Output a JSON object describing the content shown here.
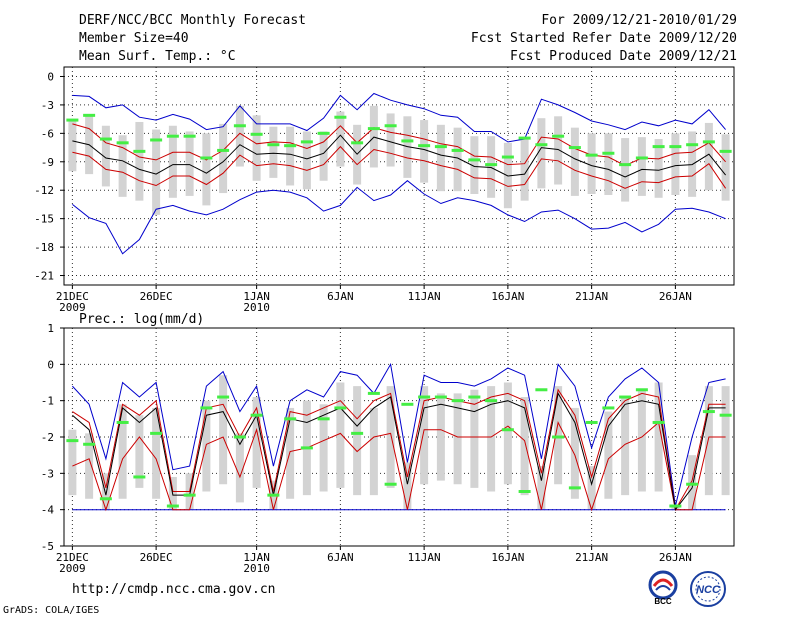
{
  "header": {
    "title": "DERF/NCC/BCC Monthly Forecast",
    "member_size": "Member Size=40",
    "variable": "Mean Surf. Temp.: °C",
    "period": "For 2009/12/21-2010/01/29",
    "started": "Fcst Started Refer Date 2009/12/20",
    "produced": "Fcst Produced Date 2009/12/21"
  },
  "footer": {
    "url": "http://cmdp.ncc.cma.gov.cn",
    "grads": "GrADS: COLA/IGES",
    "logo_bcc": "BCC",
    "logo_ncc": "NCC"
  },
  "colors": {
    "box": "#d3d3d3",
    "mean": "#000000",
    "upper": "#0000cc",
    "lower": "#cc0000",
    "obs": "#44ee44"
  },
  "chart_data": [
    {
      "type": "box-line",
      "title": "Mean Surf. Temp.: °C",
      "ylim": [
        -22,
        1
      ],
      "yticks": [
        0,
        -3,
        -6,
        -9,
        -12,
        -15,
        -18,
        -21
      ],
      "xlim": [
        0.5,
        40.5
      ],
      "xticks": [
        {
          "day": 1,
          "label": "21DEC",
          "sub": "2009"
        },
        {
          "day": 6,
          "label": "26DEC",
          "sub": ""
        },
        {
          "day": 12,
          "label": "1JAN",
          "sub": "2010"
        },
        {
          "day": 17,
          "label": "6JAN",
          "sub": ""
        },
        {
          "day": 22,
          "label": "11JAN",
          "sub": ""
        },
        {
          "day": 27,
          "label": "16JAN",
          "sub": ""
        },
        {
          "day": 32,
          "label": "21JAN",
          "sub": ""
        },
        {
          "day": 37,
          "label": "26JAN",
          "sub": ""
        }
      ],
      "upper": [
        -2.0,
        -2.1,
        -3.3,
        -3.0,
        -4.3,
        -4.6,
        -4.0,
        -4.5,
        -5.6,
        -5.3,
        -3.1,
        -5.0,
        -5.0,
        -5.0,
        -5.7,
        -4.4,
        -2.0,
        -3.5,
        -1.8,
        -2.5,
        -3.0,
        -3.4,
        -4.1,
        -4.3,
        -5.8,
        -5.8,
        -6.9,
        -6.6,
        -2.4,
        -3.0,
        -3.8,
        -4.7,
        -5.1,
        -5.6,
        -4.8,
        -5.2,
        -4.6,
        -5.0,
        -3.5,
        -5.6
      ],
      "mean": [
        -6.8,
        -7.2,
        -8.6,
        -8.9,
        -9.8,
        -10.3,
        -9.3,
        -9.3,
        -10.2,
        -9.0,
        -7.2,
        -8.2,
        -8.1,
        -8.2,
        -8.7,
        -8.1,
        -6.2,
        -8.2,
        -6.4,
        -6.9,
        -7.4,
        -7.7,
        -8.3,
        -8.6,
        -9.5,
        -9.6,
        -10.5,
        -10.3,
        -7.5,
        -7.7,
        -8.7,
        -9.4,
        -9.8,
        -10.6,
        -9.8,
        -9.9,
        -9.4,
        -9.3,
        -8.2,
        -10.4
      ],
      "upper_mean": [
        -5.0,
        -5.5,
        -7.0,
        -7.5,
        -8.5,
        -8.8,
        -8.0,
        -8.0,
        -8.8,
        -7.8,
        -6.0,
        -7.1,
        -6.9,
        -7.0,
        -7.6,
        -6.9,
        -5.2,
        -7.0,
        -5.4,
        -5.9,
        -6.2,
        -6.6,
        -7.1,
        -7.4,
        -8.4,
        -8.5,
        -9.3,
        -9.2,
        -6.4,
        -6.6,
        -7.6,
        -8.3,
        -8.5,
        -9.4,
        -8.6,
        -8.7,
        -8.1,
        -8.0,
        -7.0,
        -9.0
      ],
      "lower_mean": [
        -8.0,
        -8.4,
        -9.8,
        -10.1,
        -11.0,
        -11.5,
        -10.5,
        -10.5,
        -11.4,
        -10.2,
        -8.3,
        -9.4,
        -9.2,
        -9.4,
        -9.9,
        -9.3,
        -7.4,
        -9.3,
        -7.7,
        -8.1,
        -8.6,
        -8.9,
        -9.4,
        -9.8,
        -10.7,
        -10.8,
        -11.6,
        -11.4,
        -8.7,
        -8.9,
        -9.9,
        -10.5,
        -11.0,
        -11.8,
        -11.1,
        -11.2,
        -10.6,
        -10.5,
        -9.2,
        -11.8
      ],
      "lower": [
        -13.5,
        -14.9,
        -15.5,
        -18.7,
        -17.2,
        -14.0,
        -13.6,
        -14.2,
        -14.6,
        -14.0,
        -13.0,
        -12.2,
        -12.0,
        -12.2,
        -12.8,
        -14.2,
        -13.6,
        -11.7,
        -13.1,
        -12.5,
        -11.0,
        -12.4,
        -13.4,
        -12.8,
        -13.1,
        -13.6,
        -14.6,
        -15.3,
        -14.3,
        -14.1,
        -15.0,
        -16.1,
        -16.0,
        -15.4,
        -16.4,
        -15.6,
        -14.0,
        -13.9,
        -14.3,
        -15.0
      ],
      "box_top": [
        -4.5,
        -4.2,
        -5.2,
        -6.2,
        -4.8,
        -5.6,
        -5.2,
        -5.8,
        -6.0,
        -5.0,
        -3.1,
        -4.1,
        -5.3,
        -5.3,
        -5.8,
        -5.8,
        -3.7,
        -5.1,
        -3.1,
        -3.9,
        -4.2,
        -4.6,
        -5.1,
        -5.4,
        -6.3,
        -6.3,
        -7.0,
        -6.6,
        -4.4,
        -4.2,
        -5.4,
        -6.0,
        -6.0,
        -6.5,
        -6.4,
        -6.6,
        -6.0,
        -5.8,
        -4.9,
        -6.1
      ],
      "box_bot": [
        -10.0,
        -10.3,
        -11.6,
        -12.7,
        -13.1,
        -14.6,
        -12.8,
        -12.6,
        -13.6,
        -12.3,
        -9.5,
        -11.0,
        -10.7,
        -11.5,
        -11.9,
        -11.0,
        -9.5,
        -11.4,
        -9.6,
        -9.5,
        -10.7,
        -11.2,
        -12.1,
        -12.1,
        -12.4,
        -12.8,
        -13.9,
        -13.1,
        -11.8,
        -11.4,
        -12.6,
        -12.4,
        -12.5,
        -13.2,
        -12.6,
        -12.8,
        -12.5,
        -12.7,
        -12.0,
        -13.1
      ],
      "obs": [
        -4.6,
        -4.1,
        -6.6,
        -7.0,
        -7.9,
        -6.7,
        -6.3,
        -6.3,
        -8.6,
        -7.8,
        -5.2,
        -6.1,
        -7.2,
        -7.3,
        -6.9,
        -6.0,
        -4.3,
        -7.0,
        -5.5,
        -5.2,
        -6.8,
        -7.3,
        -7.4,
        -7.8,
        -8.8,
        -9.3,
        -8.5,
        -6.5,
        -7.2,
        -6.3,
        -7.5,
        -8.3,
        -8.1,
        -9.3,
        -8.6,
        -7.4,
        -7.4,
        -7.2,
        -6.9,
        -7.9
      ]
    },
    {
      "type": "box-line",
      "title": "Prec.: log(mm/d)",
      "ylim": [
        -5,
        1
      ],
      "yticks": [
        1,
        0,
        -1,
        -2,
        -3,
        -4,
        -5
      ],
      "xlim": [
        0.5,
        40.5
      ],
      "xticks": [
        {
          "day": 1,
          "label": "21DEC",
          "sub": "2009"
        },
        {
          "day": 6,
          "label": "26DEC",
          "sub": ""
        },
        {
          "day": 12,
          "label": "1JAN",
          "sub": "2010"
        },
        {
          "day": 17,
          "label": "6JAN",
          "sub": ""
        },
        {
          "day": 22,
          "label": "11JAN",
          "sub": ""
        },
        {
          "day": 27,
          "label": "16JAN",
          "sub": ""
        },
        {
          "day": 32,
          "label": "21JAN",
          "sub": ""
        },
        {
          "day": 37,
          "label": "26JAN",
          "sub": ""
        }
      ],
      "upper": [
        -0.6,
        -1.1,
        -2.6,
        -0.5,
        -0.9,
        -0.5,
        -2.9,
        -2.8,
        -0.6,
        -0.2,
        -1.3,
        -0.6,
        -2.8,
        -1.0,
        -0.7,
        -0.9,
        -0.2,
        -0.3,
        -0.8,
        0.0,
        -2.7,
        -0.3,
        -0.5,
        -0.5,
        -0.6,
        -0.4,
        -0.1,
        -0.3,
        -2.6,
        0.0,
        -0.6,
        -2.3,
        -0.9,
        -0.4,
        -0.1,
        -0.5,
        -3.9,
        -2.0,
        -0.5,
        -0.4
      ],
      "mean": [
        -1.4,
        -1.8,
        -3.6,
        -1.2,
        -1.6,
        -1.2,
        -3.6,
        -3.6,
        -1.4,
        -1.3,
        -2.2,
        -1.4,
        -3.6,
        -1.5,
        -1.6,
        -1.4,
        -1.2,
        -1.7,
        -1.2,
        -0.9,
        -3.3,
        -1.2,
        -1.1,
        -1.2,
        -1.3,
        -1.1,
        -1.0,
        -1.2,
        -3.2,
        -0.8,
        -1.6,
        -3.3,
        -1.7,
        -1.1,
        -1.0,
        -1.1,
        -4.0,
        -3.4,
        -1.2,
        -1.2
      ],
      "upper_mean": [
        -1.3,
        -1.6,
        -3.4,
        -1.1,
        -1.4,
        -1.0,
        -3.5,
        -3.5,
        -1.2,
        -1.1,
        -2.0,
        -1.2,
        -3.5,
        -1.3,
        -1.4,
        -1.2,
        -1.0,
        -1.5,
        -1.0,
        -0.8,
        -3.1,
        -1.0,
        -0.9,
        -1.0,
        -1.1,
        -0.9,
        -0.8,
        -1.0,
        -3.0,
        -0.7,
        -1.4,
        -3.1,
        -1.5,
        -1.0,
        -0.8,
        -0.9,
        -4.0,
        -3.2,
        -1.1,
        -1.1
      ],
      "lower_mean": [
        -2.8,
        -2.6,
        -4.0,
        -2.6,
        -2.0,
        -2.6,
        -4.0,
        -4.0,
        -2.2,
        -2.0,
        -3.1,
        -1.8,
        -4.0,
        -2.4,
        -2.3,
        -2.1,
        -1.9,
        -2.4,
        -2.0,
        -1.9,
        -4.0,
        -1.8,
        -1.8,
        -2.0,
        -2.0,
        -2.0,
        -1.7,
        -2.1,
        -4.0,
        -1.6,
        -2.5,
        -4.0,
        -2.6,
        -2.2,
        -2.0,
        -1.6,
        -4.0,
        -4.0,
        -2.0,
        -2.0
      ],
      "lower": [
        -4.0,
        -4.0,
        -4.0,
        -4.0,
        -4.0,
        -4.0,
        -4.0,
        -4.0,
        -4.0,
        -4.0,
        -4.0,
        -4.0,
        -4.0,
        -4.0,
        -4.0,
        -4.0,
        -4.0,
        -4.0,
        -4.0,
        -4.0,
        -4.0,
        -4.0,
        -4.0,
        -4.0,
        -4.0,
        -4.0,
        -4.0,
        -4.0,
        -4.0,
        -4.0,
        -4.0,
        -4.0,
        -4.0,
        -4.0,
        -4.0,
        -4.0,
        -4.0,
        -4.0,
        -4.0,
        -4.0
      ],
      "box_top": [
        -1.8,
        -1.9,
        -3.0,
        -1.1,
        -1.4,
        -1.2,
        -3.1,
        -3.0,
        -1.0,
        -0.3,
        -1.9,
        -0.9,
        -3.2,
        -1.2,
        -1.0,
        -1.1,
        -0.5,
        -0.6,
        -1.2,
        -0.6,
        -2.7,
        -0.6,
        -0.8,
        -0.8,
        -0.7,
        -0.6,
        -0.5,
        -0.9,
        -2.8,
        -0.6,
        -1.2,
        -2.8,
        -1.3,
        -0.9,
        -0.7,
        -0.5,
        -3.9,
        -2.5,
        -0.6,
        -0.6
      ],
      "box_bot": [
        -3.6,
        -3.7,
        -4.0,
        -3.7,
        -3.4,
        -3.7,
        -4.0,
        -4.0,
        -3.5,
        -3.3,
        -3.8,
        -3.4,
        -4.0,
        -3.7,
        -3.6,
        -3.5,
        -3.4,
        -3.6,
        -3.6,
        -3.4,
        -4.0,
        -3.3,
        -3.2,
        -3.3,
        -3.4,
        -3.5,
        -3.3,
        -3.6,
        -4.0,
        -3.3,
        -3.7,
        -4.0,
        -3.7,
        -3.6,
        -3.5,
        -3.5,
        -4.0,
        -4.0,
        -3.6,
        -3.6
      ],
      "obs": [
        -2.1,
        -2.2,
        -3.7,
        -1.6,
        -3.1,
        -1.9,
        -3.9,
        -3.6,
        -1.2,
        -0.9,
        -2.0,
        -1.4,
        -3.6,
        -1.5,
        -2.3,
        -1.5,
        -1.2,
        -1.9,
        -0.8,
        -3.3,
        -1.1,
        -0.9,
        -0.9,
        -1.0,
        -0.9,
        -1.0,
        -1.8,
        -3.5,
        -0.7,
        -2.0,
        -3.4,
        -1.6,
        -1.2,
        -0.9,
        -0.7,
        -1.6,
        -3.9,
        -3.3,
        -1.3,
        -1.4
      ]
    }
  ]
}
